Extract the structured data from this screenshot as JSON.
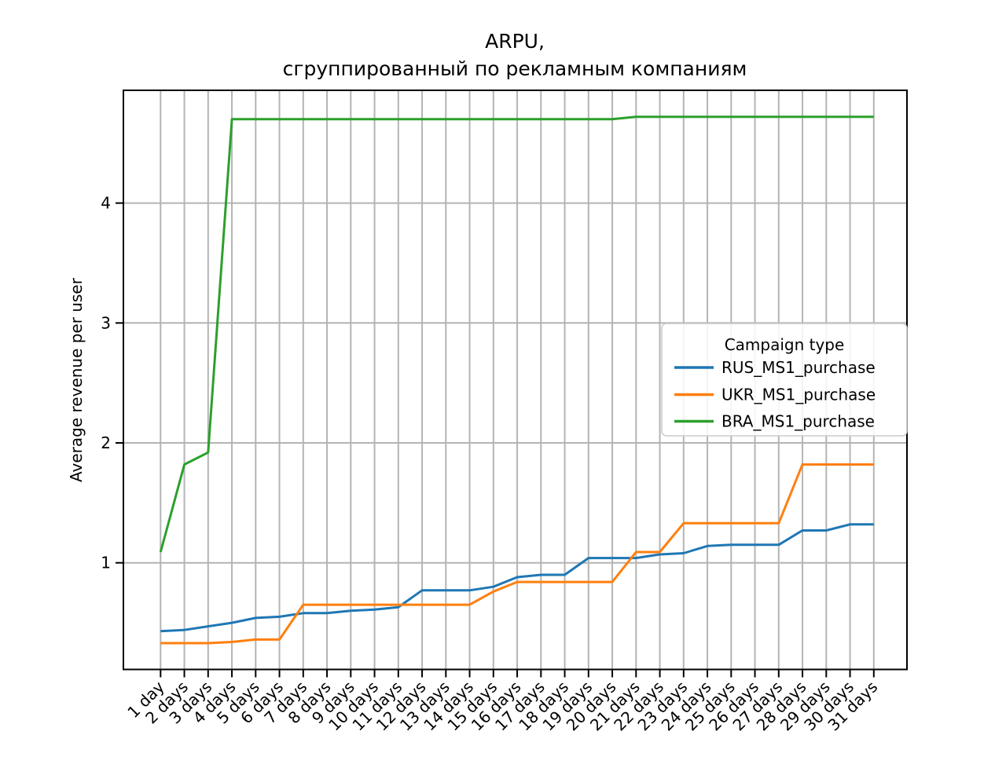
{
  "chart_data": {
    "type": "line",
    "title_lines": [
      "ARPU,",
      "сгруппированный по рекламным компаниям"
    ],
    "xlabel": "",
    "ylabel": "Average revenue per user",
    "categories": [
      "1 day",
      "2 days",
      "3 days",
      "4 days",
      "5 days",
      "6 days",
      "7 days",
      "8 days",
      "9 days",
      "10 days",
      "11 days",
      "12 days",
      "13 days",
      "14 days",
      "15 days",
      "16 days",
      "17 days",
      "18 days",
      "19 days",
      "20 days",
      "21 days",
      "22 days",
      "23 days",
      "24 days",
      "25 days",
      "26 days",
      "27 days",
      "28 days",
      "29 days",
      "30 days",
      "31 days"
    ],
    "yticks": [
      1,
      2,
      3,
      4
    ],
    "ylim": [
      0.11,
      4.94
    ],
    "grid": true,
    "x_tick_rotation_deg": 45,
    "legend": {
      "title": "Campaign type",
      "position": "center right"
    },
    "series": [
      {
        "name": "RUS_MS1_purchase",
        "color": "#1f77b4",
        "values": [
          0.43,
          0.44,
          0.47,
          0.5,
          0.54,
          0.55,
          0.58,
          0.58,
          0.6,
          0.61,
          0.63,
          0.77,
          0.77,
          0.77,
          0.8,
          0.88,
          0.9,
          0.9,
          1.04,
          1.04,
          1.04,
          1.07,
          1.08,
          1.14,
          1.15,
          1.15,
          1.15,
          1.27,
          1.27,
          1.32,
          1.32
        ]
      },
      {
        "name": "UKR_MS1_purchase",
        "color": "#ff7f0e",
        "values": [
          0.33,
          0.33,
          0.33,
          0.34,
          0.36,
          0.36,
          0.65,
          0.65,
          0.65,
          0.65,
          0.65,
          0.65,
          0.65,
          0.65,
          0.76,
          0.84,
          0.84,
          0.84,
          0.84,
          0.84,
          1.09,
          1.09,
          1.33,
          1.33,
          1.33,
          1.33,
          1.33,
          1.82,
          1.82,
          1.82,
          1.82
        ]
      },
      {
        "name": "BRA_MS1_purchase",
        "color": "#2ca02c",
        "values": [
          1.09,
          1.82,
          1.92,
          4.7,
          4.7,
          4.7,
          4.7,
          4.7,
          4.7,
          4.7,
          4.7,
          4.7,
          4.7,
          4.7,
          4.7,
          4.7,
          4.7,
          4.7,
          4.7,
          4.7,
          4.72,
          4.72,
          4.72,
          4.72,
          4.72,
          4.72,
          4.72,
          4.72,
          4.72,
          4.72,
          4.72
        ]
      }
    ],
    "style": {
      "grid_color": "#b4b4b4",
      "spine_color": "#000000",
      "background": "#ffffff"
    }
  }
}
